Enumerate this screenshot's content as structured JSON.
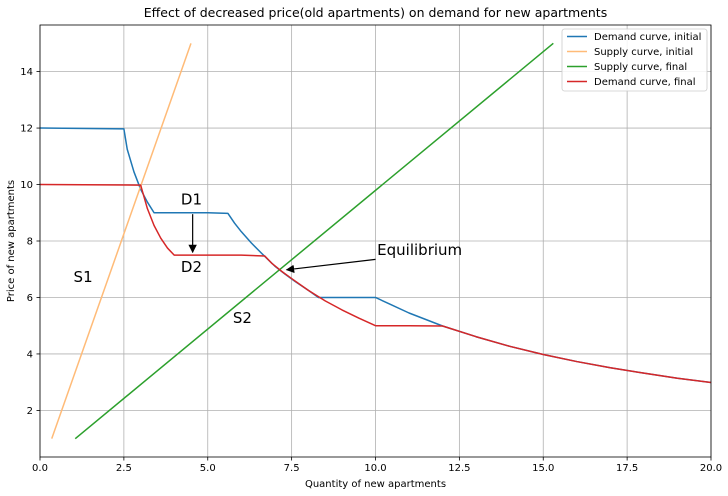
{
  "chart_data": {
    "type": "line",
    "title": "Effect of decreased price(old apartments) on demand for new apartments",
    "xlabel": "Quantity of new apartments",
    "ylabel": "Price of new apartments",
    "xlim": [
      0,
      20
    ],
    "ylim": [
      0.35,
      15.65
    ],
    "xticks": [
      "0.0",
      "2.5",
      "5.0",
      "7.5",
      "10.0",
      "12.5",
      "15.0",
      "17.5",
      "20.0"
    ],
    "yticks": [
      "2",
      "4",
      "6",
      "8",
      "10",
      "12",
      "14"
    ],
    "grid": true,
    "legend_position": "upper right",
    "series": [
      {
        "name": "Demand curve, initial",
        "color": "#1f77b4",
        "x": [
          0,
          2.5,
          2.6,
          2.8,
          3.0,
          3.2,
          3.4,
          4.0,
          5.0,
          5.6,
          5.8,
          6.0,
          6.3,
          6.6,
          7.0,
          7.3,
          7.6,
          8.0,
          8.3,
          9.0,
          10.0,
          10.4,
          11.0,
          12.0,
          13.0,
          14.0,
          15.0,
          16.0,
          17.0,
          18.0,
          19.0,
          20.0
        ],
        "y": [
          12.0,
          11.97,
          11.25,
          10.45,
          9.83,
          9.38,
          9.0,
          9.0,
          9.0,
          8.98,
          8.63,
          8.33,
          7.93,
          7.57,
          7.11,
          6.83,
          6.57,
          6.25,
          6.0,
          6.0,
          6.0,
          5.78,
          5.45,
          4.99,
          4.61,
          4.27,
          3.98,
          3.73,
          3.51,
          3.32,
          3.14,
          2.99
        ]
      },
      {
        "name": "Supply curve, initial",
        "color": "#ffbb78",
        "x": [
          0.35,
          4.5
        ],
        "y": [
          1.0,
          15.0
        ]
      },
      {
        "name": "Supply curve, final",
        "color": "#2ca02c",
        "x": [
          1.05,
          15.3
        ],
        "y": [
          1.0,
          15.0
        ]
      },
      {
        "name": "Demand curve, final",
        "color": "#d62728",
        "x": [
          0,
          3.0,
          3.2,
          3.4,
          3.6,
          3.8,
          4.0,
          5.0,
          6.0,
          6.7,
          6.9,
          7.2,
          7.5,
          8.0,
          8.5,
          9.0,
          9.5,
          10.0,
          11.0,
          12.0,
          13.0,
          14.0,
          15.0,
          16.0,
          17.0,
          18.0,
          19.0,
          20.0
        ],
        "y": [
          10.0,
          9.98,
          9.15,
          8.55,
          8.1,
          7.75,
          7.5,
          7.5,
          7.5,
          7.47,
          7.22,
          6.93,
          6.67,
          6.25,
          5.88,
          5.56,
          5.27,
          5.0,
          5.0,
          4.99,
          4.61,
          4.27,
          3.98,
          3.73,
          3.51,
          3.32,
          3.14,
          2.99
        ]
      }
    ],
    "annotations": [
      {
        "text": "D1",
        "x": 4.2,
        "y": 9.3
      },
      {
        "text": "D2",
        "x": 4.2,
        "y": 6.9
      },
      {
        "text": "S1",
        "x": 1.0,
        "y": 6.55
      },
      {
        "text": "S2",
        "x": 5.75,
        "y": 5.1
      },
      {
        "text": "Equilibrium",
        "x": 10.05,
        "y": 7.5
      }
    ],
    "arrows": [
      {
        "from": [
          4.55,
          8.95
        ],
        "to": [
          4.55,
          7.6
        ]
      },
      {
        "from": [
          10.0,
          7.35
        ],
        "to": [
          7.35,
          6.98
        ]
      }
    ],
    "annotation_colors": {
      "D1": "#000000",
      "D2": "#000000",
      "S1": "#aaaaaa",
      "S2": "#000000",
      "Equilibrium": "#000000"
    }
  }
}
